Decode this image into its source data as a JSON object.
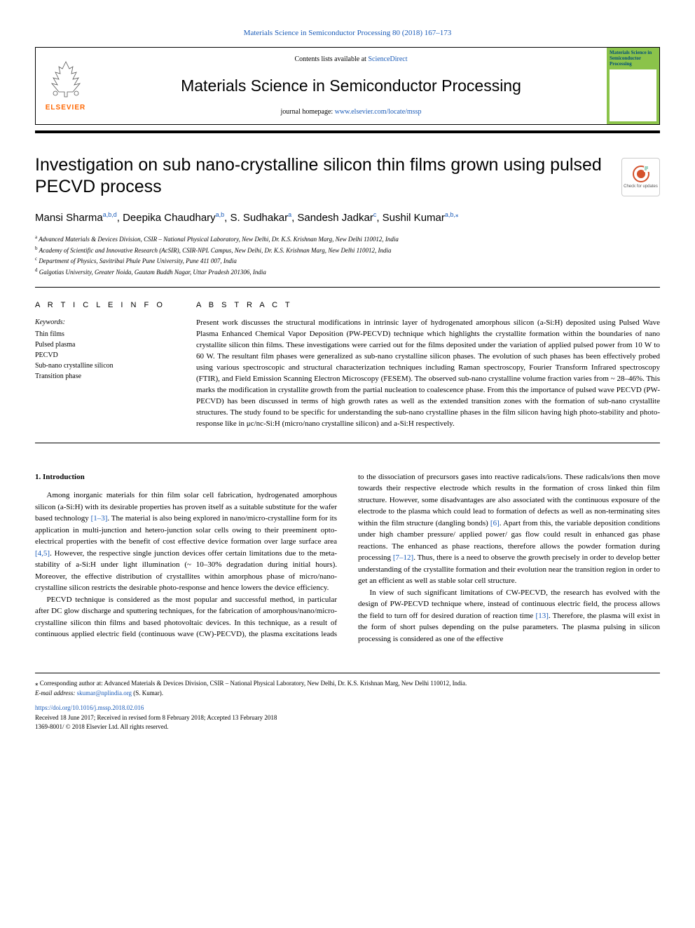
{
  "header": {
    "top_link": "Materials Science in Semiconductor Processing 80 (2018) 167–173",
    "contents_prefix": "Contents lists available at ",
    "contents_link": "ScienceDirect",
    "journal_name": "Materials Science in Semiconductor Processing",
    "homepage_prefix": "journal homepage: ",
    "homepage_link": "www.elsevier.com/locate/mssp",
    "elsevier_label": "ELSEVIER",
    "cover_title": "Materials Science in Semiconductor Processing"
  },
  "check_updates": {
    "label": "Check for updates"
  },
  "title": "Investigation on sub nano-crystalline silicon thin films grown using pulsed PECVD process",
  "authors": [
    {
      "name": "Mansi Sharma",
      "sup": "a,b,d"
    },
    {
      "name": "Deepika Chaudhary",
      "sup": "a,b"
    },
    {
      "name": "S. Sudhakar",
      "sup": "a"
    },
    {
      "name": "Sandesh Jadkar",
      "sup": "c"
    },
    {
      "name": "Sushil Kumar",
      "sup": "a,b,",
      "star": true
    }
  ],
  "affiliations": [
    {
      "sup": "a",
      "text": "Advanced Materials & Devices Division, CSIR – National Physical Laboratory, New Delhi, Dr. K.S. Krishnan Marg, New Delhi 110012, India"
    },
    {
      "sup": "b",
      "text": "Academy of Scientific and Innovative Research (AcSIR), CSIR-NPL Campus, New Delhi, Dr. K.S. Krishnan Marg, New Delhi 110012, India"
    },
    {
      "sup": "c",
      "text": "Department of Physics, Savitribai Phule Pune University, Pune 411 007, India"
    },
    {
      "sup": "d",
      "text": "Galgotias University, Greater Noida, Gautam Buddh Nagar, Uttar Pradesh 201306, India"
    }
  ],
  "article_info": {
    "heading": "A R T I C L E  I N F O",
    "keywords_label": "Keywords:",
    "keywords": [
      "Thin films",
      "Pulsed plasma",
      "PECVD",
      "Sub-nano crystalline silicon",
      "Transition phase"
    ]
  },
  "abstract": {
    "heading": "A B S T R A C T",
    "text": "Present work discusses the structural modifications in intrinsic layer of hydrogenated amorphous silicon (a-Si:H) deposited using Pulsed Wave Plasma Enhanced Chemical Vapor Deposition (PW-PECVD) technique which highlights the crystallite formation within the boundaries of nano crystallite silicon thin films. These investigations were carried out for the films deposited under the variation of applied pulsed power from 10 W to 60 W. The resultant film phases were generalized as sub-nano crystalline silicon phases. The evolution of such phases has been effectively probed using various spectroscopic and structural characterization techniques including Raman spectroscopy, Fourier Transform Infrared spectroscopy (FTIR), and Field Emission Scanning Electron Microscopy (FESEM). The observed sub-nano crystalline volume fraction varies from ~ 28–46%. This marks the modification in crystallite growth from the partial nucleation to coalescence phase. From this the importance of pulsed wave PECVD (PW-PECVD) has been discussed in terms of high growth rates as well as the extended transition zones with the formation of sub-nano crystallite structures. The study found to be specific for understanding the sub-nano crystalline phases in the film silicon having high photo-stability and photo-response like in μc/nc-Si:H (micro/nano crystalline silicon) and a-Si:H respectively."
  },
  "body": {
    "heading": "1. Introduction",
    "p1a": "Among inorganic materials for thin film solar cell fabrication, hydrogenated amorphous silicon (a-Si:H) with its desirable properties has proven itself as a suitable substitute for the wafer based technology ",
    "r1": "[1–3]",
    "p1b": ". The material is also being explored in nano/micro-crystalline form for its application in multi-junction and hetero-junction solar cells owing to their preeminent opto-electrical properties with the benefit of cost effective device formation over large surface area ",
    "r2": "[4,5]",
    "p1c": ". However, the respective single junction devices offer certain limitations due to the meta-stability of a-Si:H under light illumination (~ 10–30% degradation during initial hours). Moreover, the effective distribution of crystallites within amorphous phase of micro/nano-crystalline silicon restricts the desirable photo-response and hence lowers the device efficiency.",
    "p2a": "PECVD technique is considered as the most popular and successful method, in particular after DC glow discharge and sputtering techniques, for the fabrication of amorphous/nano/micro-crystalline silicon thin films and based photovoltaic devices. In this technique, as a result of continuous applied electric field (continuous wave (CW)-PECVD), the plasma excitations leads to the dissociation of precursors gases into reactive radicals/ions. These radicals/ions then move towards their respective electrode which results in the formation of cross linked thin film structure. However, some disadvantages are also associated with the continuous exposure of the electrode to the plasma which could lead to formation of defects as well as non-terminating sites within the film structure (dangling bonds) ",
    "r3": "[6]",
    "p2b": ". Apart from this, the variable deposition conditions under high chamber pressure/ applied power/ gas flow could result in enhanced gas phase reactions. The enhanced as phase reactions, therefore allows the powder formation during processing ",
    "r4": "[7–12]",
    "p2c": ". Thus, there is a need to observe the growth precisely in order to develop better understanding of the crystallite formation and their evolution near the transition region in order to get an efficient as well as stable solar cell structure.",
    "p3a": "In view of such significant limitations of CW-PECVD, the research has evolved with the design of PW-PECVD technique where, instead of continuous electric field, the process allows the field to turn off for desired duration of reaction time ",
    "r5": "[13]",
    "p3b": ". Therefore, the plasma will exist in the form of short pulses depending on the pulse parameters. The plasma pulsing in silicon processing is considered as one of the effective"
  },
  "footer": {
    "corr": "⁎ Corresponding author at: Advanced Materials & Devices Division, CSIR – National Physical Laboratory, New Delhi, Dr. K.S. Krishnan Marg, New Delhi 110012, India.",
    "email_label": "E-mail address: ",
    "email": "skumar@nplindia.org",
    "email_suffix": " (S. Kumar).",
    "doi": "https://doi.org/10.1016/j.mssp.2018.02.016",
    "received": "Received 18 June 2017; Received in revised form 8 February 2018; Accepted 13 February 2018",
    "copyright": "1369-8001/ © 2018 Elsevier Ltd. All rights reserved."
  }
}
